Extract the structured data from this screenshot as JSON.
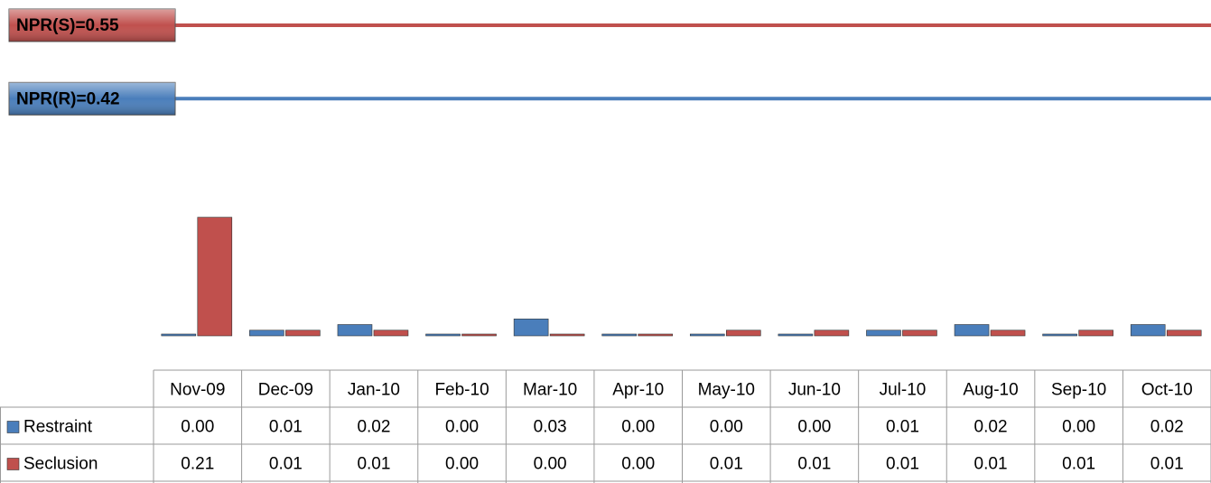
{
  "chart_data": {
    "type": "bar",
    "categories": [
      "Nov-09",
      "Dec-09",
      "Jan-10",
      "Feb-10",
      "Mar-10",
      "Apr-10",
      "May-10",
      "Jun-10",
      "Jul-10",
      "Aug-10",
      "Sep-10",
      "Oct-10"
    ],
    "series": [
      {
        "name": "Restraint",
        "color": "#4a7ebb",
        "values": [
          0,
          0.01,
          0.02,
          0,
          0.03,
          0,
          0,
          0,
          0.01,
          0.02,
          0,
          0.02
        ],
        "value_labels": [
          "0.00",
          "0.01",
          "0.02",
          "0.00",
          "0.03",
          "0.00",
          "0.00",
          "0.00",
          "0.01",
          "0.02",
          "0.00",
          "0.02"
        ]
      },
      {
        "name": "Seclusion",
        "color": "#c0504d",
        "values": [
          0.21,
          0.01,
          0.01,
          0,
          0,
          0,
          0.01,
          0.01,
          0.01,
          0.01,
          0.01,
          0.01
        ],
        "value_labels": [
          "0.21",
          "0.01",
          "0.01",
          "0.00",
          "0.00",
          "0.00",
          "0.01",
          "0.01",
          "0.01",
          "0.01",
          "0.01",
          "0.01"
        ]
      }
    ],
    "reference_lines": [
      {
        "label": "NPR(S)=0.55",
        "value": 0.55,
        "color": "#c0504d",
        "text_color": "#fde9a9"
      },
      {
        "label": "NPR(R)=0.42",
        "value": 0.42,
        "color": "#4a7ebb",
        "text_color": "#ffffff"
      }
    ]
  }
}
